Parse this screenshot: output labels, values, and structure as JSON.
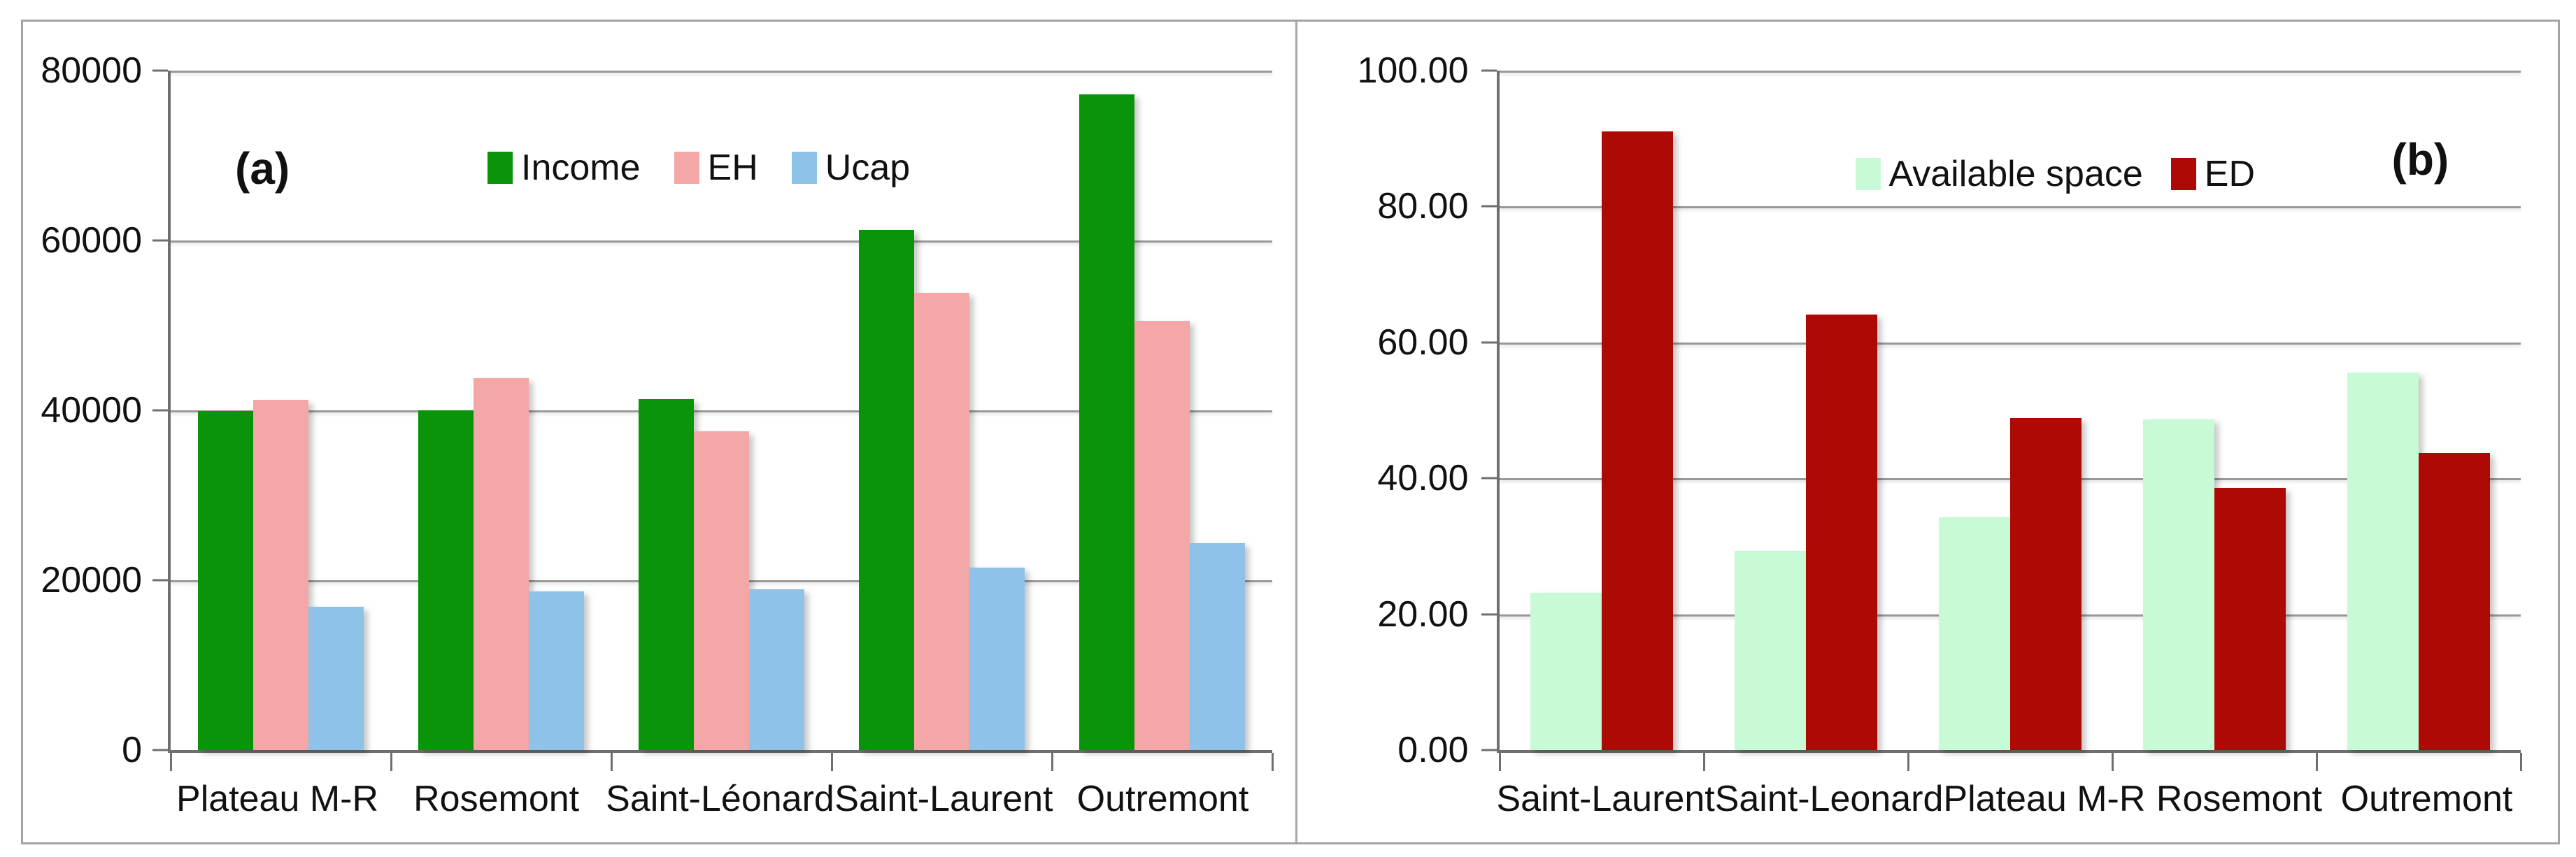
{
  "chart_data": [
    {
      "type": "bar",
      "panel_label": "(a)",
      "title": "",
      "xlabel": "",
      "ylabel": "",
      "ylim": [
        0,
        80000
      ],
      "ytick_values": [
        80000,
        60000,
        40000,
        20000,
        0
      ],
      "ytick_labels": [
        "80000",
        "60000",
        "40000",
        "20000",
        "0"
      ],
      "grid": true,
      "legend_position": "top-center",
      "categories": [
        "Plateau M-R",
        "Rosemont",
        "Saint-Léonard",
        "Saint-Laurent",
        "Outremont"
      ],
      "series": [
        {
          "name": "Income",
          "color": "#0a940a",
          "values": [
            39900,
            40000,
            41300,
            61200,
            77200
          ]
        },
        {
          "name": "EH",
          "color": "#f3a7a7",
          "values": [
            41200,
            43800,
            37500,
            53800,
            50500
          ]
        },
        {
          "name": "Ucap",
          "color": "#8ec2e9",
          "values": [
            16900,
            18700,
            18900,
            21500,
            24400
          ]
        }
      ]
    },
    {
      "type": "bar",
      "panel_label": "(b)",
      "title": "",
      "xlabel": "",
      "ylabel": "",
      "ylim": [
        0,
        100
      ],
      "ytick_values": [
        100,
        80,
        60,
        40,
        20,
        0
      ],
      "ytick_labels": [
        "100.00",
        "80.00",
        "60.00",
        "40.00",
        "20.00",
        "0.00"
      ],
      "grid": true,
      "legend_position": "top-right",
      "categories": [
        "Saint-Laurent",
        "Saint-Leonard",
        "Plateau M-R",
        "Rosemont",
        "Outremont"
      ],
      "series": [
        {
          "name": "Available space",
          "color": "#c8fad5",
          "values": [
            23.1,
            29.3,
            34.3,
            48.7,
            55.6
          ]
        },
        {
          "name": "ED",
          "color": "#ae0a05",
          "values": [
            91.0,
            64.1,
            48.9,
            38.6,
            43.7
          ]
        }
      ]
    }
  ]
}
